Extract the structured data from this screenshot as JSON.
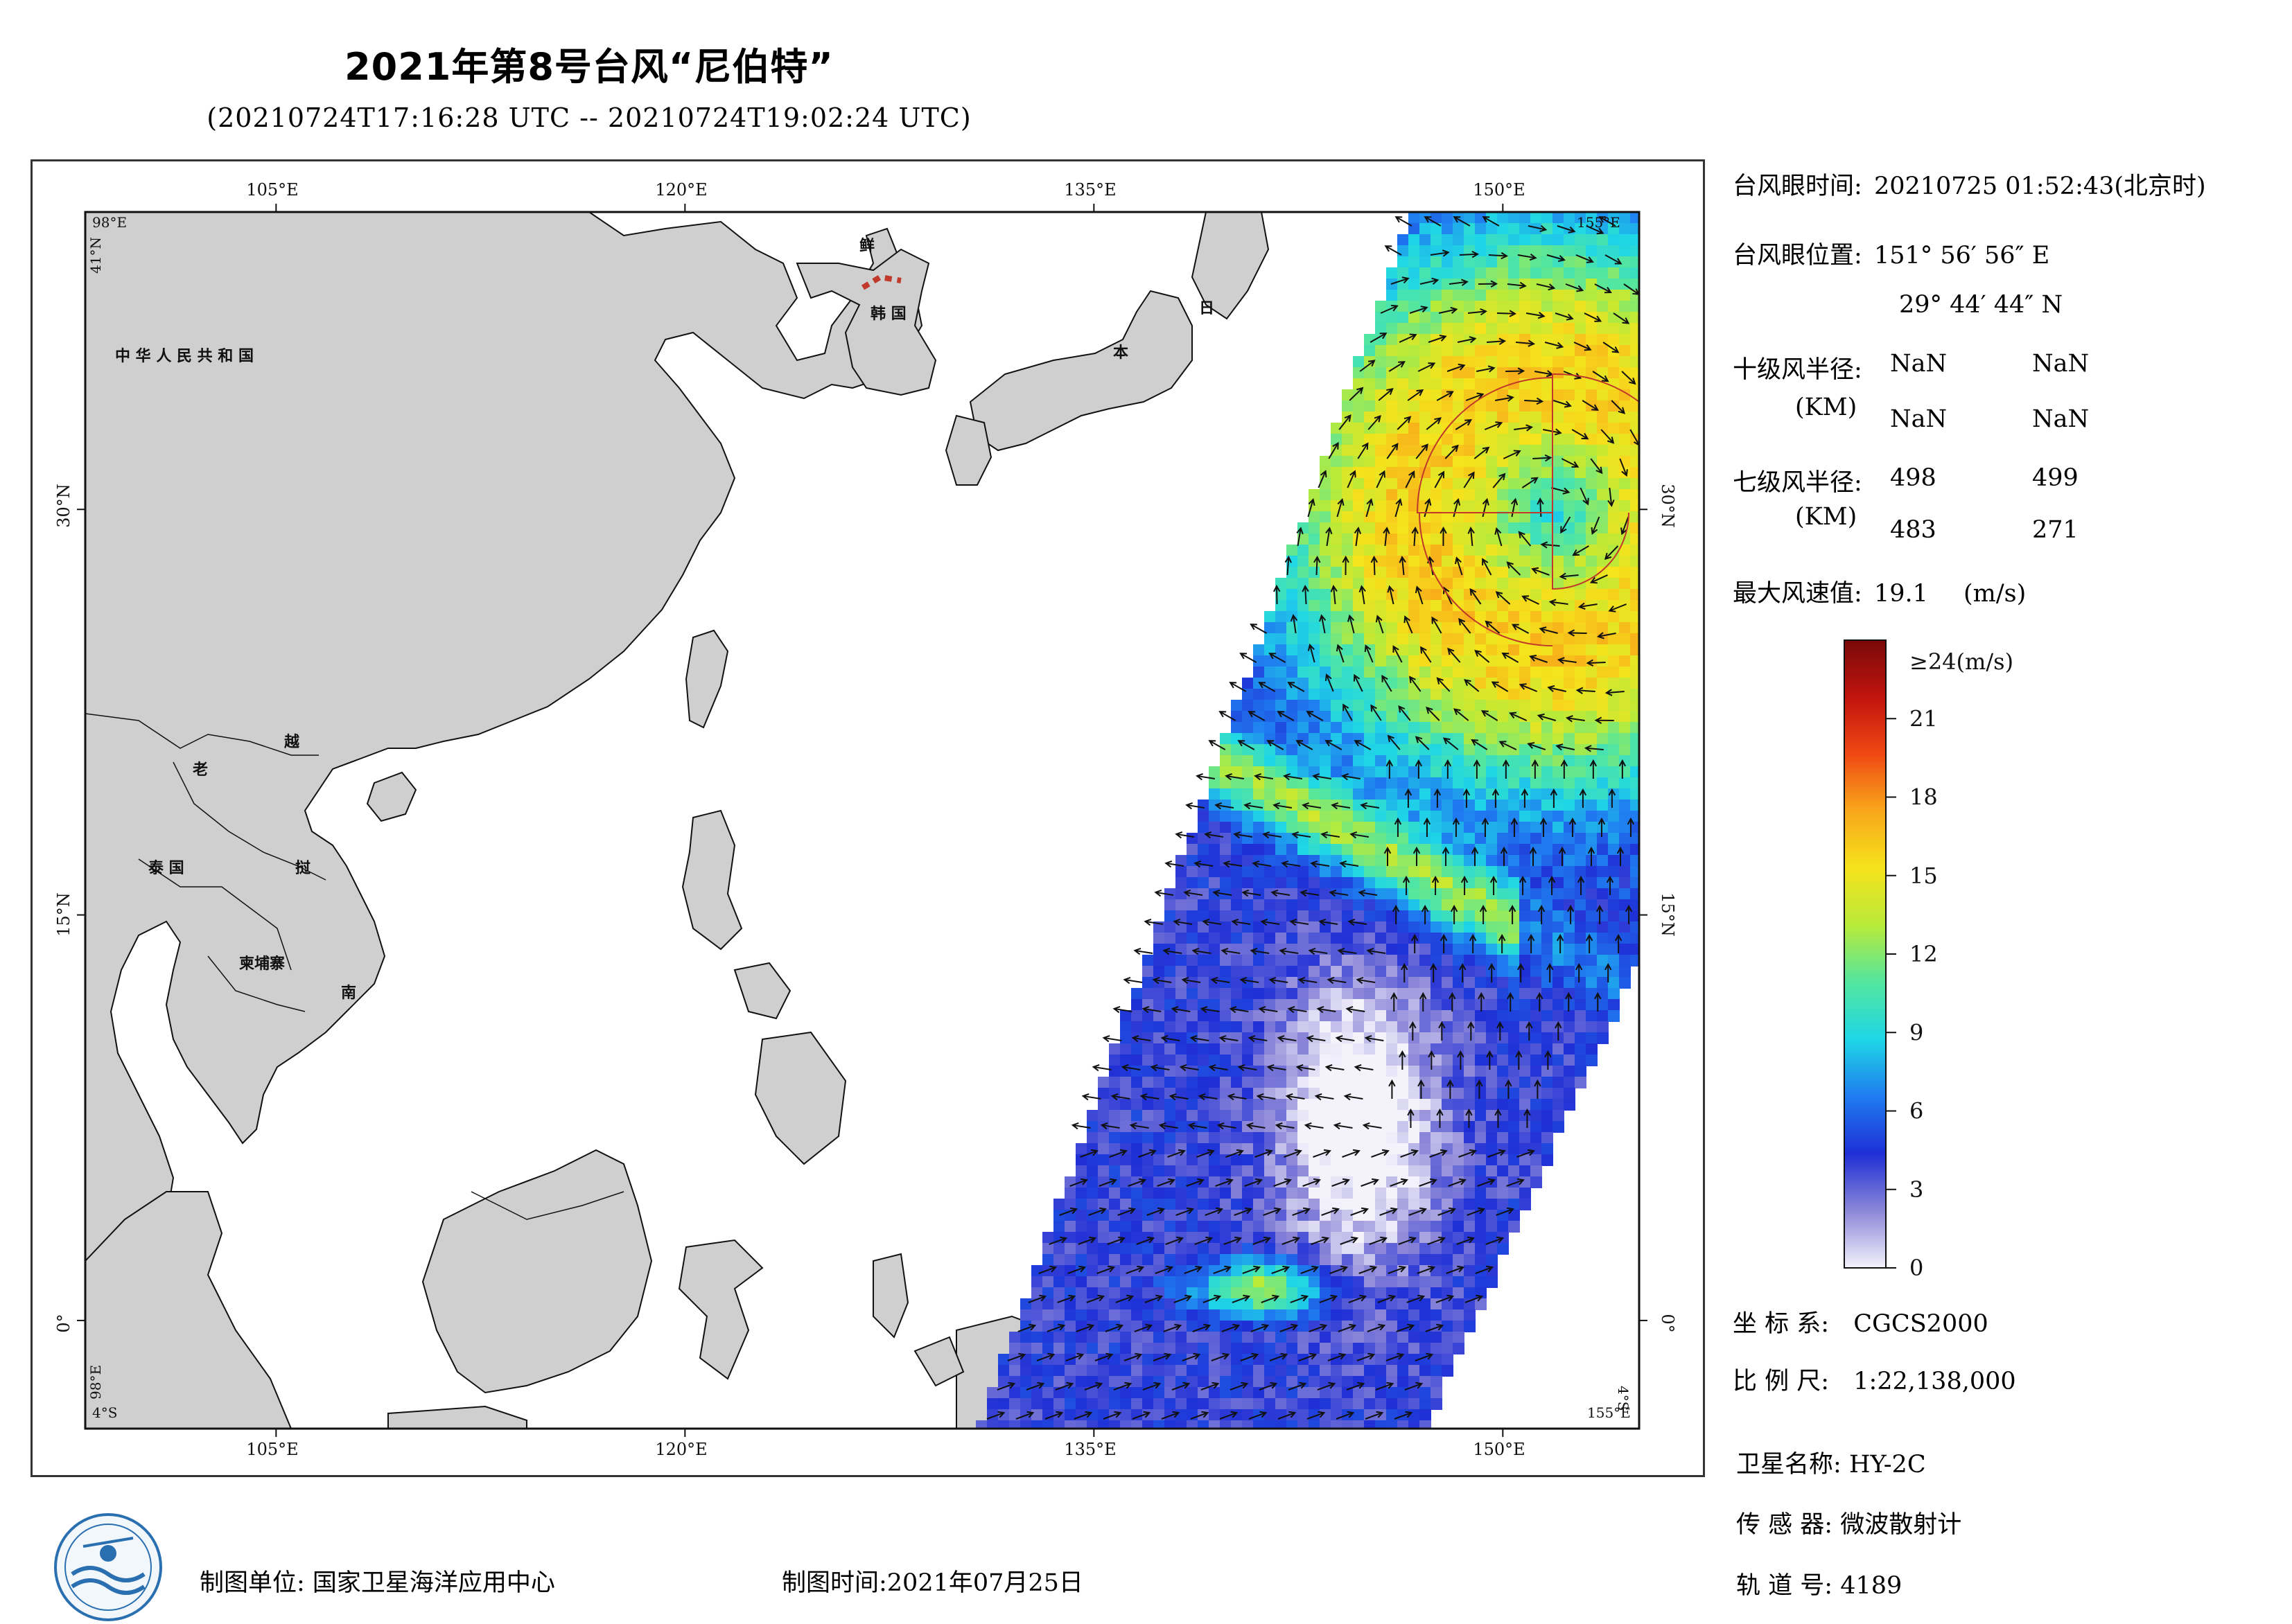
{
  "header": {
    "title": "2021年第8号台风“尼伯特”",
    "subtitle": "(20210724T17:16:28 UTC -- 20210724T19:02:24 UTC)"
  },
  "map": {
    "lon_ticks_top": [
      "105°E",
      "120°E",
      "135°E",
      "150°E"
    ],
    "lon_ticks_bottom": [
      "105°E",
      "120°E",
      "135°E",
      "150°E"
    ],
    "lat_ticks_left": [
      "30°N",
      "15°N",
      "0°"
    ],
    "lat_ticks_right": [
      "30°N",
      "15°N",
      "0°"
    ],
    "corner_labels": {
      "top_left_lon": "98°E",
      "top_left_lat": "41°N",
      "bottom_left_lat": "4°S",
      "bottom_left_lon": "98°E",
      "bottom_right_lon": "155°E",
      "bottom_right_lat": "4°S",
      "top_right_lon": "155°E"
    },
    "extent": {
      "lon": [
        98,
        155
      ],
      "lat": [
        -4,
        41
      ]
    },
    "country_labels": {
      "china": "中 华 人 民 共 和 国",
      "korea_n": "鲜",
      "korea_s": "韩 国",
      "japan_1": "日",
      "japan_2": "本",
      "laos": "老",
      "vietnam_1": "越",
      "vietnam_2": "南",
      "thailand": "泰 国",
      "cambodia": "柬埔寨",
      "vietnam_mid": "挝"
    },
    "colors": {
      "land": "#cfcfcf",
      "sea": "#ffffff",
      "coast": "#111111",
      "radius_line": "#c0392b"
    }
  },
  "info": {
    "eye_time_label": "台风眼时间:",
    "eye_time_value": "20210725 01:52:43(北京时)",
    "eye_pos_label": "台风眼位置:",
    "eye_pos_lon": "151° 56′ 56″ E",
    "eye_pos_lat": "29° 44′ 44″ N",
    "r10_label": "十级风半径:",
    "r10_unit": "(KM)",
    "r10_values": [
      "NaN",
      "NaN",
      "NaN",
      "NaN"
    ],
    "r7_label": "七级风半径:",
    "r7_unit": "(KM)",
    "r7_values": [
      "498",
      "499",
      "483",
      "271"
    ],
    "max_wind_label": "最大风速值:",
    "max_wind_value": "19.1",
    "max_wind_unit": "(m/s)"
  },
  "legend": {
    "top_label": "≥24(m/s)",
    "ticks": [
      "21",
      "18",
      "15",
      "12",
      "9",
      "6",
      "3",
      "0"
    ],
    "tick_values": [
      21,
      18,
      15,
      12,
      9,
      6,
      3,
      0
    ],
    "max": 24,
    "stops": [
      "#f4f2fb",
      "#8c87d8",
      "#1f2fd6",
      "#1f7cf0",
      "#1fd6e6",
      "#52e6a0",
      "#b8ea3a",
      "#f5e31c",
      "#f8a81a",
      "#f04a14",
      "#c1140e",
      "#7a0a0a"
    ]
  },
  "meta": {
    "crs_label": "坐 标 系:",
    "crs_value": "CGCS2000",
    "scale_label": "比 例 尺:",
    "scale_value": "1:22,138,000",
    "sat_label": "卫星名称:",
    "sat_value": "HY-2C",
    "sensor_label": "传 感 器:",
    "sensor_value": "微波散射计",
    "orbit_label": "轨 道 号:",
    "orbit_value": "4189"
  },
  "footer": {
    "producer": "制图单位: 国家卫星海洋应用中心",
    "date": "制图时间:2021年07月25日"
  }
}
